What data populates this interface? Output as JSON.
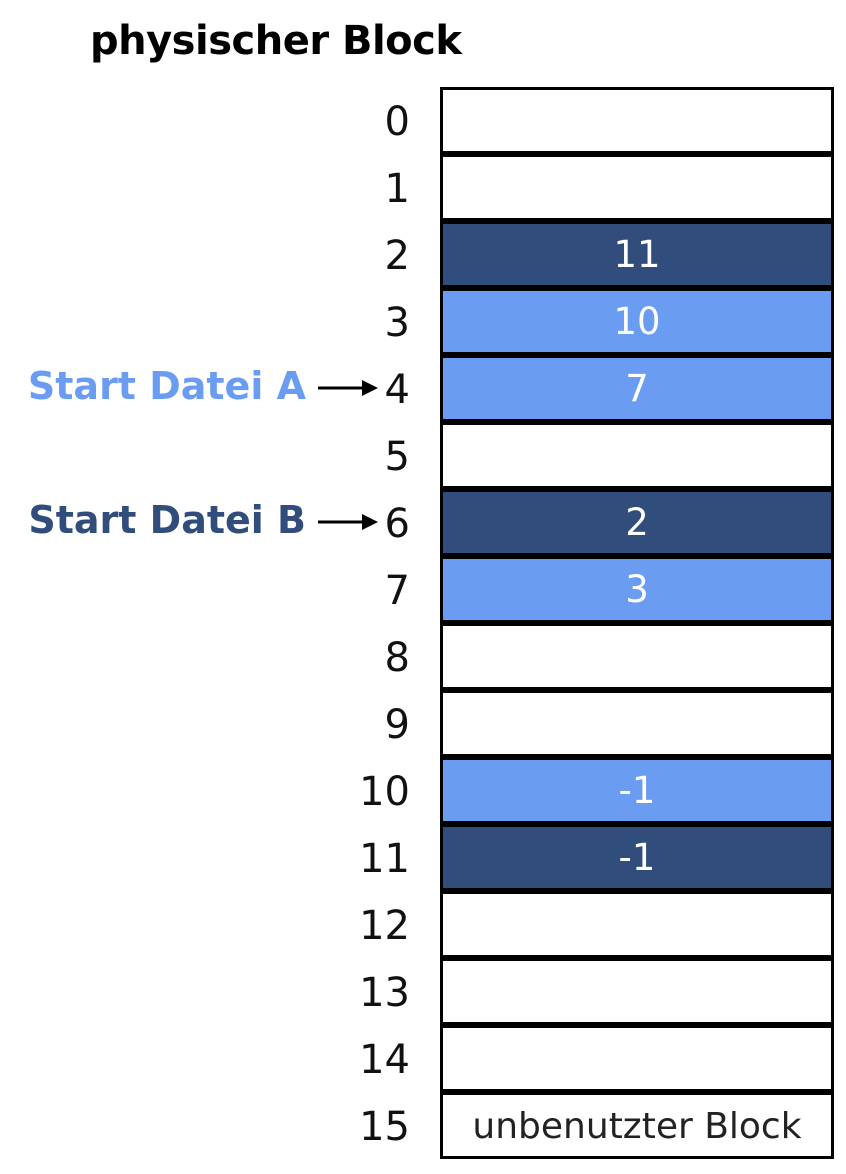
{
  "title": "physischer Block",
  "colors": {
    "file_a": "#6a9df2",
    "file_b": "#314d7c",
    "free": "#ffffff",
    "border": "#000000"
  },
  "rows": [
    {
      "index": "0",
      "value": "",
      "owner": "free"
    },
    {
      "index": "1",
      "value": "",
      "owner": "free"
    },
    {
      "index": "2",
      "value": "11",
      "owner": "B"
    },
    {
      "index": "3",
      "value": "10",
      "owner": "A"
    },
    {
      "index": "4",
      "value": "7",
      "owner": "A"
    },
    {
      "index": "5",
      "value": "",
      "owner": "free"
    },
    {
      "index": "6",
      "value": "2",
      "owner": "B"
    },
    {
      "index": "7",
      "value": "3",
      "owner": "A"
    },
    {
      "index": "8",
      "value": "",
      "owner": "free"
    },
    {
      "index": "9",
      "value": "",
      "owner": "free"
    },
    {
      "index": "10",
      "value": "-1",
      "owner": "A"
    },
    {
      "index": "11",
      "value": "-1",
      "owner": "B"
    },
    {
      "index": "12",
      "value": "",
      "owner": "free"
    },
    {
      "index": "13",
      "value": "",
      "owner": "free"
    },
    {
      "index": "14",
      "value": "",
      "owner": "free"
    },
    {
      "index": "15",
      "value": "",
      "owner": "free"
    }
  ],
  "unused_caption": "unbenutzter Block",
  "start_markers": [
    {
      "label": "Start Datei A",
      "target_row": 4,
      "color": "#6a9df2"
    },
    {
      "label": "Start Datei B",
      "target_row": 6,
      "color": "#314d7c"
    }
  ]
}
